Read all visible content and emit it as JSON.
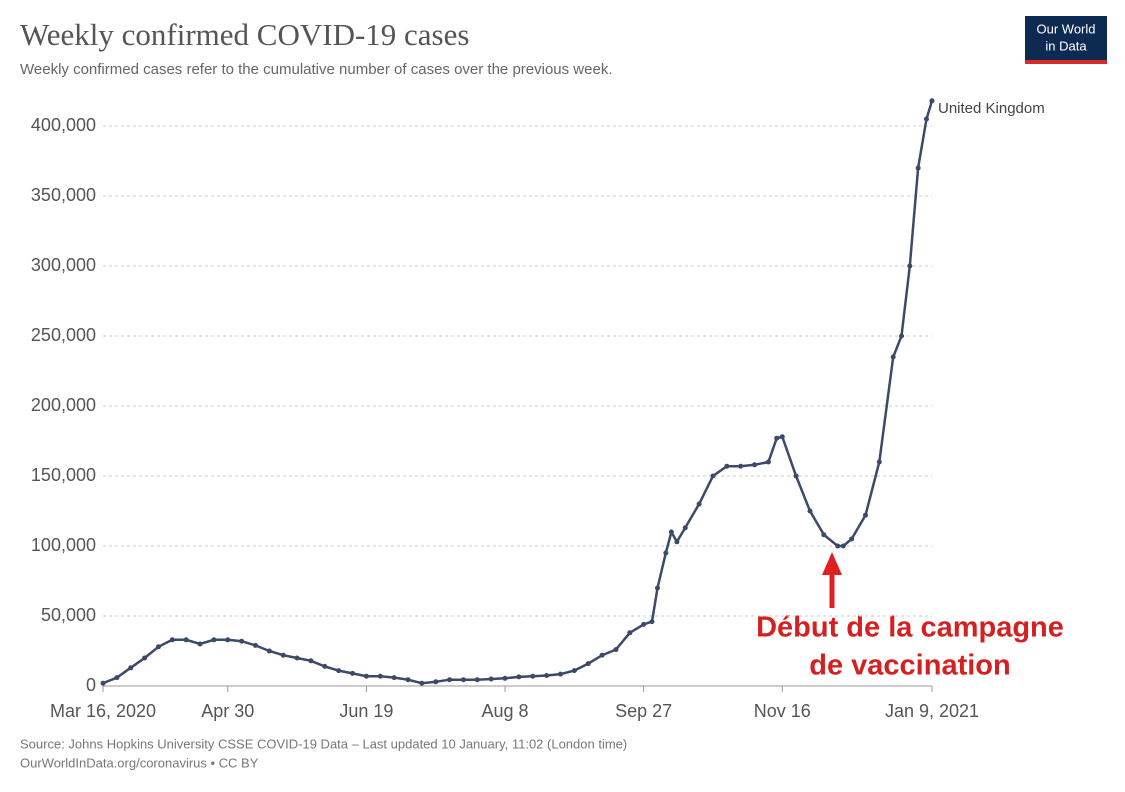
{
  "chart_data": {
    "type": "line",
    "title": "Weekly confirmed COVID-19 cases",
    "subtitle": "Weekly confirmed cases refer to the cumulative number of cases over the previous week.",
    "logo": [
      "Our World",
      "in Data"
    ],
    "source": [
      "Source: Johns Hopkins University CSSE COVID-19 Data – Last updated 10 January, 11:02 (London time)",
      "OurWorldInData.org/coronavirus • CC BY"
    ],
    "annotation": [
      "Début de la campagne",
      "de vaccination"
    ],
    "x": [
      "2020-03-16",
      "2020-03-21",
      "2020-03-26",
      "2020-03-31",
      "2020-04-05",
      "2020-04-10",
      "2020-04-15",
      "2020-04-20",
      "2020-04-25",
      "2020-04-30",
      "2020-05-05",
      "2020-05-10",
      "2020-05-15",
      "2020-05-20",
      "2020-05-25",
      "2020-05-30",
      "2020-06-04",
      "2020-06-09",
      "2020-06-14",
      "2020-06-19",
      "2020-06-24",
      "2020-06-29",
      "2020-07-04",
      "2020-07-09",
      "2020-07-14",
      "2020-07-19",
      "2020-07-24",
      "2020-07-29",
      "2020-08-03",
      "2020-08-08",
      "2020-08-13",
      "2020-08-18",
      "2020-08-23",
      "2020-08-28",
      "2020-09-02",
      "2020-09-07",
      "2020-09-12",
      "2020-09-17",
      "2020-09-22",
      "2020-09-27",
      "2020-09-30",
      "2020-10-02",
      "2020-10-05",
      "2020-10-07",
      "2020-10-09",
      "2020-10-12",
      "2020-10-17",
      "2020-10-22",
      "2020-10-27",
      "2020-11-01",
      "2020-11-06",
      "2020-11-11",
      "2020-11-14",
      "2020-11-16",
      "2020-11-21",
      "2020-11-26",
      "2020-12-01",
      "2020-12-06",
      "2020-12-08",
      "2020-12-11",
      "2020-12-16",
      "2020-12-21",
      "2020-12-26",
      "2020-12-29",
      "2021-01-01",
      "2021-01-04",
      "2021-01-07",
      "2021-01-09"
    ],
    "series": [
      {
        "name": "United Kingdom",
        "color": "#3b4a6b",
        "values": [
          2000,
          6000,
          13000,
          20000,
          28000,
          33000,
          33000,
          30000,
          33000,
          33000,
          32000,
          29000,
          25000,
          22000,
          20000,
          18000,
          14000,
          11000,
          9000,
          7000,
          7000,
          6000,
          4500,
          2000,
          3000,
          4500,
          4500,
          4500,
          5000,
          5500,
          6500,
          7000,
          7500,
          8500,
          11000,
          16000,
          22000,
          26000,
          38000,
          44000,
          46000,
          70000,
          95000,
          110000,
          103000,
          113000,
          130000,
          150000,
          157000,
          157000,
          158000,
          160000,
          177000,
          178000,
          150000,
          125000,
          108000,
          100000,
          100000,
          105000,
          122000,
          160000,
          235000,
          250000,
          300000,
          370000,
          405000,
          418000
        ]
      }
    ],
    "xlim": [
      "2020-03-16",
      "2021-01-09"
    ],
    "xticks": [
      {
        "value": "2020-03-16",
        "label": "Mar 16, 2020"
      },
      {
        "value": "2020-04-30",
        "label": "Apr 30"
      },
      {
        "value": "2020-06-19",
        "label": "Jun 19"
      },
      {
        "value": "2020-08-08",
        "label": "Aug 8"
      },
      {
        "value": "2020-09-27",
        "label": "Sep 27"
      },
      {
        "value": "2020-11-16",
        "label": "Nov 16"
      },
      {
        "value": "2021-01-09",
        "label": "Jan 9, 2021"
      }
    ],
    "ylim": [
      0,
      400000
    ],
    "yticks": [
      0,
      {
        "value": 50000,
        "label": "50,000"
      },
      {
        "value": 100000,
        "label": "100,000"
      },
      {
        "value": 150000,
        "label": "150,000"
      },
      {
        "value": 200000,
        "label": "200,000"
      },
      {
        "value": 250000,
        "label": "250,000"
      },
      {
        "value": 300000,
        "label": "300,000"
      },
      {
        "value": 350000,
        "label": "350,000"
      },
      {
        "value": 400000,
        "label": "400,000"
      }
    ],
    "grid": true
  }
}
